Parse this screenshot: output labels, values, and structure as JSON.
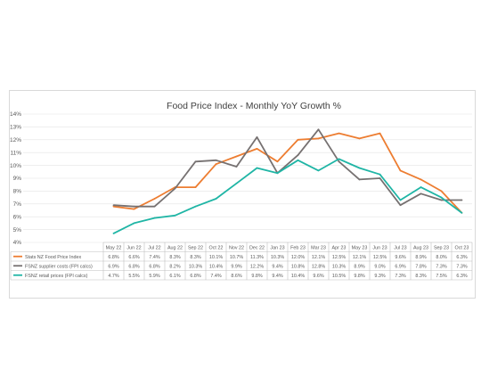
{
  "chart_data": {
    "type": "line",
    "title": "Food Price Index - Monthly YoY Growth %",
    "categories": [
      "May 22",
      "Jun 22",
      "Jul 22",
      "Aug 22",
      "Sep 22",
      "Oct 22",
      "Nov 22",
      "Dec 22",
      "Jan 23",
      "Feb 23",
      "Mar 23",
      "Apr 23",
      "May 23",
      "Jun 23",
      "Jul 23",
      "Aug 23",
      "Sep 23",
      "Oct 23"
    ],
    "ylim": [
      4,
      14
    ],
    "yticks": [
      "4%",
      "5%",
      "6%",
      "7%",
      "8%",
      "9%",
      "10%",
      "11%",
      "12%",
      "13%",
      "14%"
    ],
    "grid": true,
    "legend": "data-table",
    "series": [
      {
        "name": "Stats NZ Food Price Index",
        "color": "#ed7d31",
        "values": [
          6.8,
          6.6,
          7.4,
          8.3,
          8.3,
          10.1,
          10.7,
          11.3,
          10.3,
          12.0,
          12.1,
          12.5,
          12.1,
          12.5,
          9.6,
          8.9,
          8.0,
          6.3
        ],
        "labels": [
          "6.8%",
          "6.6%",
          "7.4%",
          "8.3%",
          "8.3%",
          "10.1%",
          "10.7%",
          "11.3%",
          "10.3%",
          "12.0%",
          "12.1%",
          "12.5%",
          "12.1%",
          "12.5%",
          "9.6%",
          "8.9%",
          "8.0%",
          "6.3%"
        ]
      },
      {
        "name": "FSNZ supplier costs (FPI calcs)",
        "color": "#767171",
        "values": [
          6.9,
          6.8,
          6.8,
          8.2,
          10.3,
          10.4,
          9.9,
          12.2,
          9.4,
          10.8,
          12.8,
          10.3,
          8.9,
          9.0,
          6.9,
          7.8,
          7.3,
          7.3
        ],
        "labels": [
          "6.9%",
          "6.8%",
          "6.8%",
          "8.2%",
          "10.3%",
          "10.4%",
          "9.9%",
          "12.2%",
          "9.4%",
          "10.8%",
          "12.8%",
          "10.3%",
          "8.9%",
          "9.0%",
          "6.9%",
          "7.8%",
          "7.3%",
          "7.3%"
        ]
      },
      {
        "name": "FSNZ retail prices (FPI calcs)",
        "color": "#1fb5a5",
        "values": [
          4.7,
          5.5,
          5.9,
          6.1,
          6.8,
          7.4,
          8.6,
          9.8,
          9.4,
          10.4,
          9.6,
          10.5,
          9.8,
          9.3,
          7.3,
          8.3,
          7.5,
          6.3
        ],
        "labels": [
          "4.7%",
          "5.5%",
          "5.9%",
          "6.1%",
          "6.8%",
          "7.4%",
          "8.6%",
          "9.8%",
          "9.4%",
          "10.4%",
          "9.6%",
          "10.5%",
          "9.8%",
          "9.3%",
          "7.3%",
          "8.3%",
          "7.5%",
          "6.3%"
        ]
      }
    ]
  }
}
